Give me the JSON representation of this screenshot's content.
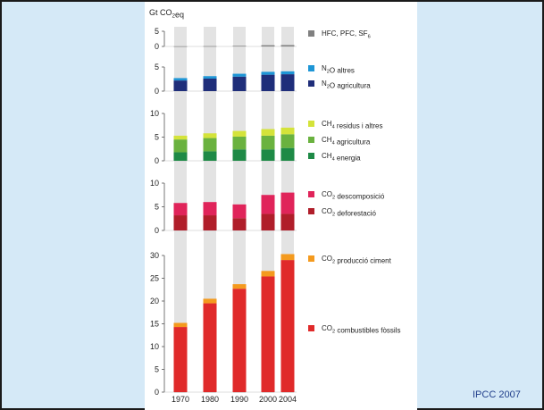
{
  "source": "IPCC 2007",
  "chart_data": {
    "type": "bar",
    "stacked": true,
    "unit_label": "Gt CO2eq",
    "categories": [
      "1970",
      "1980",
      "1990",
      "2000",
      "2004"
    ],
    "panels": [
      {
        "id": "fluorinated",
        "yticks": [
          0,
          5
        ],
        "ylim": [
          0,
          5
        ],
        "series": [
          {
            "name": "HFC, PFC, SF6",
            "color": "#808080",
            "values": [
              0.05,
              0.1,
              0.2,
              0.4,
              0.45
            ]
          }
        ]
      },
      {
        "id": "n2o",
        "yticks": [
          0,
          5
        ],
        "ylim": [
          0,
          5
        ],
        "series": [
          {
            "name": "N2O agricultura",
            "color": "#1f2e7a",
            "values": [
              2.2,
              2.6,
              3.0,
              3.4,
              3.5
            ]
          },
          {
            "name": "N2O altres",
            "color": "#1e96d6",
            "values": [
              0.5,
              0.5,
              0.6,
              0.6,
              0.6
            ]
          }
        ]
      },
      {
        "id": "ch4",
        "yticks": [
          0,
          5,
          10
        ],
        "ylim": [
          0,
          10
        ],
        "series": [
          {
            "name": "CH4 energia",
            "color": "#1e8a46",
            "values": [
              1.8,
              2.0,
              2.4,
              2.4,
              2.7
            ]
          },
          {
            "name": "CH4 agricultura",
            "color": "#6ab23f",
            "values": [
              2.7,
              2.8,
              2.7,
              2.9,
              2.9
            ]
          },
          {
            "name": "CH4 residus i altres",
            "color": "#d4e33a",
            "values": [
              0.8,
              1.0,
              1.2,
              1.4,
              1.4
            ]
          }
        ]
      },
      {
        "id": "co2land",
        "yticks": [
          0,
          5,
          10
        ],
        "ylim": [
          0,
          10
        ],
        "series": [
          {
            "name": "CO2 deforestació",
            "color": "#b01e2a",
            "values": [
              3.2,
              3.2,
              2.6,
              3.5,
              3.5
            ]
          },
          {
            "name": "CO2 descomposició",
            "color": "#e0245a",
            "values": [
              2.6,
              2.8,
              2.9,
              4.0,
              4.5
            ]
          }
        ]
      },
      {
        "id": "co2fossil",
        "yticks": [
          0,
          5,
          10,
          15,
          20,
          25,
          30
        ],
        "ylim": [
          0,
          30
        ],
        "series": [
          {
            "name": "CO2 combustibles fòssils",
            "color": "#e02a2a",
            "values": [
              14.3,
              19.5,
              22.7,
              25.4,
              29.0
            ]
          },
          {
            "name": "CO2 producció ciment",
            "color": "#f49a1e",
            "values": [
              0.9,
              1.0,
              1.0,
              1.2,
              1.3
            ]
          }
        ]
      }
    ]
  }
}
